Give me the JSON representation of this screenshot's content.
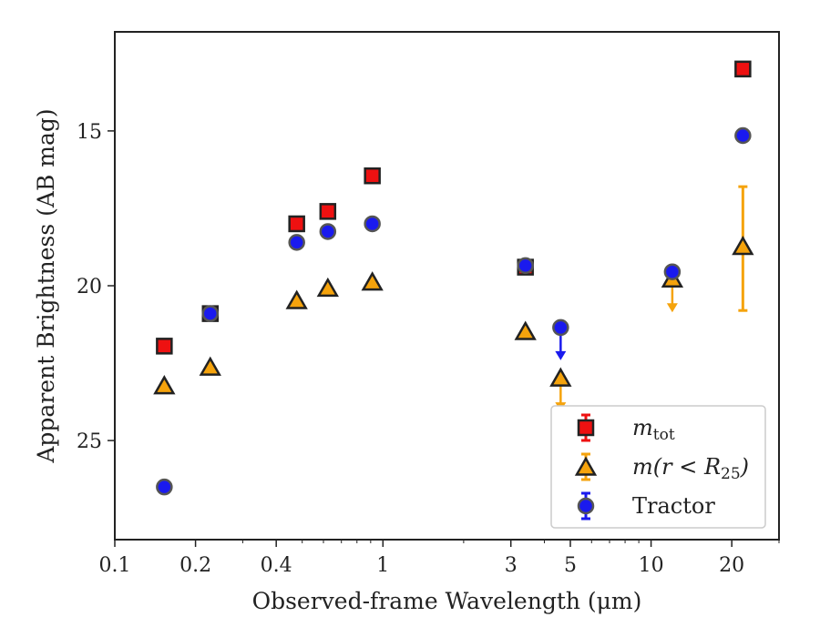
{
  "chart_data": {
    "type": "scatter",
    "xlabel": "Observed-frame Wavelength (μm)",
    "ylabel": "Apparent Brightness (AB mag)",
    "xscale": "log",
    "xlim": [
      0.1,
      30
    ],
    "ylim": [
      28.2,
      11.8
    ],
    "y_inverted": true,
    "x_ticks": [
      {
        "value": 0.1,
        "label": "0.1"
      },
      {
        "value": 0.2,
        "label": "0.2"
      },
      {
        "value": 0.4,
        "label": "0.4"
      },
      {
        "value": 1,
        "label": "1"
      },
      {
        "value": 3,
        "label": "3"
      },
      {
        "value": 5,
        "label": "5"
      },
      {
        "value": 10,
        "label": "10"
      },
      {
        "value": 20,
        "label": "20"
      }
    ],
    "y_ticks": [
      {
        "value": 15,
        "label": "15"
      },
      {
        "value": 20,
        "label": "20"
      },
      {
        "value": 25,
        "label": "25"
      }
    ],
    "grid": false,
    "legend_position": "lower-right",
    "series": [
      {
        "name": "m_tot",
        "label_main": "m",
        "label_sub": "tot",
        "marker": "square",
        "color": "#ee1111",
        "points": [
          {
            "x": 0.153,
            "y": 21.95
          },
          {
            "x": 0.227,
            "y": 20.9
          },
          {
            "x": 0.477,
            "y": 18.0
          },
          {
            "x": 0.623,
            "y": 17.6
          },
          {
            "x": 0.913,
            "y": 16.45
          },
          {
            "x": 3.4,
            "y": 19.4
          },
          {
            "x": 22.0,
            "y": 13.0
          }
        ]
      },
      {
        "name": "m(r < R25)",
        "label_main": "m(r < R",
        "label_sub": "25",
        "label_tail": ")",
        "marker": "triangle",
        "color": "#f5a30c",
        "points": [
          {
            "x": 0.153,
            "y": 23.25
          },
          {
            "x": 0.227,
            "y": 22.65
          },
          {
            "x": 0.477,
            "y": 20.5
          },
          {
            "x": 0.623,
            "y": 20.1
          },
          {
            "x": 0.913,
            "y": 19.9
          },
          {
            "x": 3.4,
            "y": 21.5
          },
          {
            "x": 4.6,
            "y": 23.0
          },
          {
            "x": 12.0,
            "y": 19.8
          },
          {
            "x": 22.0,
            "y": 18.75,
            "err": [
              16.8,
              20.8
            ]
          }
        ],
        "upper_limits": [
          {
            "x": 4.6,
            "y": 23.0
          },
          {
            "x": 12.0,
            "y": 19.8
          }
        ]
      },
      {
        "name": "Tractor",
        "label_main": "Tractor",
        "marker": "circle",
        "color": "#1a1aee",
        "points": [
          {
            "x": 0.153,
            "y": 26.5
          },
          {
            "x": 0.227,
            "y": 20.9
          },
          {
            "x": 0.477,
            "y": 18.6
          },
          {
            "x": 0.623,
            "y": 18.25
          },
          {
            "x": 0.913,
            "y": 18.0
          },
          {
            "x": 3.4,
            "y": 19.35
          },
          {
            "x": 4.6,
            "y": 21.35
          },
          {
            "x": 12.0,
            "y": 19.55
          },
          {
            "x": 22.0,
            "y": 15.15
          }
        ],
        "upper_limits": [
          {
            "x": 4.6,
            "y": 21.35
          }
        ]
      }
    ]
  }
}
